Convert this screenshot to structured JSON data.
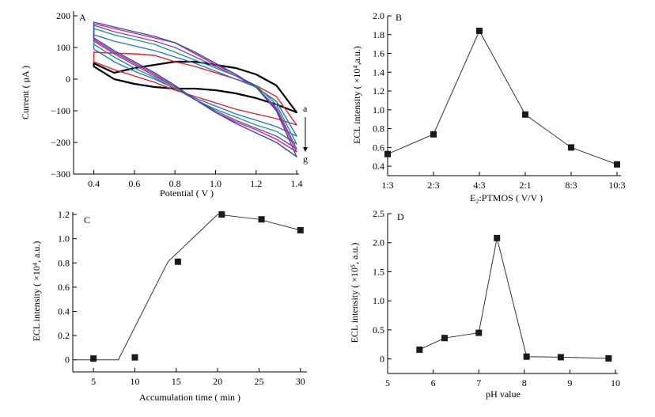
{
  "chart_data": [
    {
      "type": "line",
      "panel_label": "A",
      "xlabel": "Potential ( V )",
      "ylabel": "Current ( μA )",
      "xlim": [
        0.3,
        1.4
      ],
      "ylim": [
        -300,
        200
      ],
      "xticks": [
        "0.4",
        "0.6",
        "0.8",
        "1.0",
        "1.2",
        "1.4"
      ],
      "yticks": [
        "200",
        "100",
        "0",
        "−100",
        "−200",
        "−300"
      ],
      "annotations": [
        "a",
        "g"
      ],
      "series": [
        {
          "color": "#000000",
          "upper": [
            [
              0.4,
              50
            ],
            [
              0.5,
              20
            ],
            [
              0.6,
              35
            ],
            [
              0.7,
              45
            ],
            [
              0.8,
              55
            ],
            [
              0.9,
              55
            ],
            [
              1.0,
              45
            ],
            [
              1.1,
              35
            ],
            [
              1.2,
              15
            ],
            [
              1.3,
              -20
            ],
            [
              1.4,
              -105
            ]
          ],
          "lower": [
            [
              0.4,
              40
            ],
            [
              0.5,
              0
            ],
            [
              0.6,
              -15
            ],
            [
              0.7,
              -25
            ],
            [
              0.8,
              -30
            ],
            [
              0.9,
              -30
            ],
            [
              1.0,
              -35
            ],
            [
              1.1,
              -45
            ],
            [
              1.2,
              -60
            ],
            [
              1.3,
              -80
            ],
            [
              1.4,
              -105
            ]
          ]
        },
        {
          "color": "#e02020",
          "upper": [
            [
              0.4,
              85
            ],
            [
              0.5,
              82
            ],
            [
              0.6,
              80
            ],
            [
              0.7,
              75
            ],
            [
              0.8,
              55
            ],
            [
              0.9,
              40
            ],
            [
              1.0,
              20
            ],
            [
              1.1,
              0
            ],
            [
              1.2,
              -20
            ],
            [
              1.3,
              -55
            ],
            [
              1.4,
              -145
            ]
          ],
          "lower": [
            [
              0.4,
              55
            ],
            [
              0.5,
              30
            ],
            [
              0.6,
              10
            ],
            [
              0.7,
              -10
            ],
            [
              0.8,
              -35
            ],
            [
              0.9,
              -55
            ],
            [
              1.0,
              -75
            ],
            [
              1.1,
              -95
            ],
            [
              1.2,
              -110
            ],
            [
              1.3,
              -125
            ],
            [
              1.4,
              -145
            ]
          ]
        },
        {
          "color": "#2a6fd6",
          "upper": [
            [
              0.4,
              140
            ],
            [
              0.5,
              120
            ],
            [
              0.6,
              105
            ],
            [
              0.7,
              90
            ],
            [
              0.8,
              70
            ],
            [
              0.9,
              50
            ],
            [
              1.0,
              25
            ],
            [
              1.1,
              0
            ],
            [
              1.2,
              -25
            ],
            [
              1.3,
              -70
            ],
            [
              1.4,
              -180
            ]
          ],
          "lower": [
            [
              0.4,
              95
            ],
            [
              0.5,
              55
            ],
            [
              0.6,
              25
            ],
            [
              0.7,
              0
            ],
            [
              0.8,
              -30
            ],
            [
              0.9,
              -60
            ],
            [
              1.0,
              -85
            ],
            [
              1.1,
              -110
            ],
            [
              1.2,
              -130
            ],
            [
              1.3,
              -150
            ],
            [
              1.4,
              -180
            ]
          ]
        },
        {
          "color": "#16a070",
          "upper": [
            [
              0.4,
              160
            ],
            [
              0.5,
              140
            ],
            [
              0.6,
              125
            ],
            [
              0.7,
              110
            ],
            [
              0.8,
              85
            ],
            [
              0.9,
              60
            ],
            [
              1.0,
              35
            ],
            [
              1.1,
              10
            ],
            [
              1.2,
              -20
            ],
            [
              1.3,
              -80
            ],
            [
              1.4,
              -205
            ]
          ],
          "lower": [
            [
              0.4,
              110
            ],
            [
              0.5,
              70
            ],
            [
              0.6,
              35
            ],
            [
              0.7,
              5
            ],
            [
              0.8,
              -30
            ],
            [
              0.9,
              -65
            ],
            [
              1.0,
              -95
            ],
            [
              1.1,
              -120
            ],
            [
              1.2,
              -145
            ],
            [
              1.3,
              -165
            ],
            [
              1.4,
              -205
            ]
          ]
        },
        {
          "color": "#8a40c0",
          "upper": [
            [
              0.4,
              170
            ],
            [
              0.5,
              150
            ],
            [
              0.6,
              135
            ],
            [
              0.7,
              120
            ],
            [
              0.8,
              100
            ],
            [
              0.9,
              70
            ],
            [
              1.0,
              40
            ],
            [
              1.1,
              10
            ],
            [
              1.2,
              -25
            ],
            [
              1.3,
              -90
            ],
            [
              1.4,
              -220
            ]
          ],
          "lower": [
            [
              0.4,
              120
            ],
            [
              0.5,
              80
            ],
            [
              0.6,
              45
            ],
            [
              0.7,
              10
            ],
            [
              0.8,
              -25
            ],
            [
              0.9,
              -65
            ],
            [
              1.0,
              -100
            ],
            [
              1.1,
              -130
            ],
            [
              1.2,
              -155
            ],
            [
              1.3,
              -180
            ],
            [
              1.4,
              -220
            ]
          ]
        },
        {
          "color": "#d02090",
          "upper": [
            [
              0.4,
              175
            ],
            [
              0.5,
              160
            ],
            [
              0.6,
              145
            ],
            [
              0.7,
              130
            ],
            [
              0.8,
              115
            ],
            [
              0.9,
              80
            ],
            [
              1.0,
              45
            ],
            [
              1.1,
              15
            ],
            [
              1.2,
              -25
            ],
            [
              1.3,
              -95
            ],
            [
              1.4,
              -230
            ]
          ],
          "lower": [
            [
              0.4,
              125
            ],
            [
              0.5,
              85
            ],
            [
              0.6,
              50
            ],
            [
              0.7,
              15
            ],
            [
              0.8,
              -25
            ],
            [
              0.9,
              -65
            ],
            [
              1.0,
              -105
            ],
            [
              1.1,
              -135
            ],
            [
              1.2,
              -160
            ],
            [
              1.3,
              -190
            ],
            [
              1.4,
              -230
            ]
          ]
        },
        {
          "color": "#3050a8",
          "upper": [
            [
              0.4,
              180
            ],
            [
              0.5,
              165
            ],
            [
              0.6,
              150
            ],
            [
              0.7,
              135
            ],
            [
              0.8,
              115
            ],
            [
              0.9,
              85
            ],
            [
              1.0,
              50
            ],
            [
              1.1,
              15
            ],
            [
              1.2,
              -25
            ],
            [
              1.3,
              -100
            ],
            [
              1.4,
              -245
            ]
          ],
          "lower": [
            [
              0.4,
              130
            ],
            [
              0.5,
              90
            ],
            [
              0.6,
              55
            ],
            [
              0.7,
              20
            ],
            [
              0.8,
              -20
            ],
            [
              0.9,
              -65
            ],
            [
              1.0,
              -105
            ],
            [
              1.1,
              -140
            ],
            [
              1.2,
              -170
            ],
            [
              1.3,
              -200
            ],
            [
              1.4,
              -245
            ]
          ]
        }
      ]
    },
    {
      "type": "line",
      "panel_label": "B",
      "xlabel": "E₂:PTMOS ( V/V )",
      "ylabel": "ECL  intensity ( ×10⁴,a.u.)",
      "categories": [
        "1:3",
        "2:3",
        "4:3",
        "2:1",
        "8:3",
        "10:3"
      ],
      "x_positions": [
        0,
        1,
        2,
        3,
        4,
        5
      ],
      "values": [
        0.53,
        0.74,
        1.84,
        0.95,
        0.6,
        0.42
      ],
      "xlim": [
        0,
        5
      ],
      "ylim": [
        0.3,
        2.0
      ],
      "yticks": [
        "2.0",
        "1.8",
        "1.6",
        "1.4",
        "1.2",
        "1.0",
        "0.8",
        "0.6",
        "0.4"
      ]
    },
    {
      "type": "line",
      "panel_label": "C",
      "xlabel": "Accumulation  time ( min )",
      "ylabel": "ECL  intensity ( ×10⁴, a.u.)",
      "xlim": [
        2.5,
        30.5
      ],
      "ylim": [
        -0.1,
        1.22
      ],
      "xticks": [
        "5",
        "10",
        "15",
        "20",
        "25",
        "30"
      ],
      "yticks": [
        "1.2",
        "1.0",
        "0.8",
        "0.6",
        "0.4",
        "0.2",
        "0"
      ],
      "line_x": [
        2.5,
        8,
        14,
        20,
        25,
        30
      ],
      "line_y": [
        0,
        0,
        0.81,
        1.2,
        1.16,
        1.07
      ],
      "marker_x": [
        5,
        10,
        15.2,
        20.5,
        25.3,
        30
      ],
      "marker_y": [
        0.01,
        0.02,
        0.81,
        1.2,
        1.16,
        1.07
      ]
    },
    {
      "type": "line",
      "panel_label": "D",
      "xlabel": "pH  value",
      "ylabel": "ECL  intensity ( ×10⁵, a.u.)",
      "xlim": [
        5,
        10
      ],
      "ylim": [
        -0.25,
        2.5
      ],
      "xticks": [
        "5",
        "6",
        "7",
        "8",
        "9",
        "10"
      ],
      "yticks": [
        "2.5",
        "2.0",
        "1.5",
        "1.0",
        "0.5",
        "0"
      ],
      "x": [
        5.7,
        6.25,
        7.0,
        7.4,
        8.05,
        8.8,
        9.85
      ],
      "values": [
        0.16,
        0.36,
        0.45,
        2.08,
        0.04,
        0.03,
        0.01
      ]
    }
  ]
}
